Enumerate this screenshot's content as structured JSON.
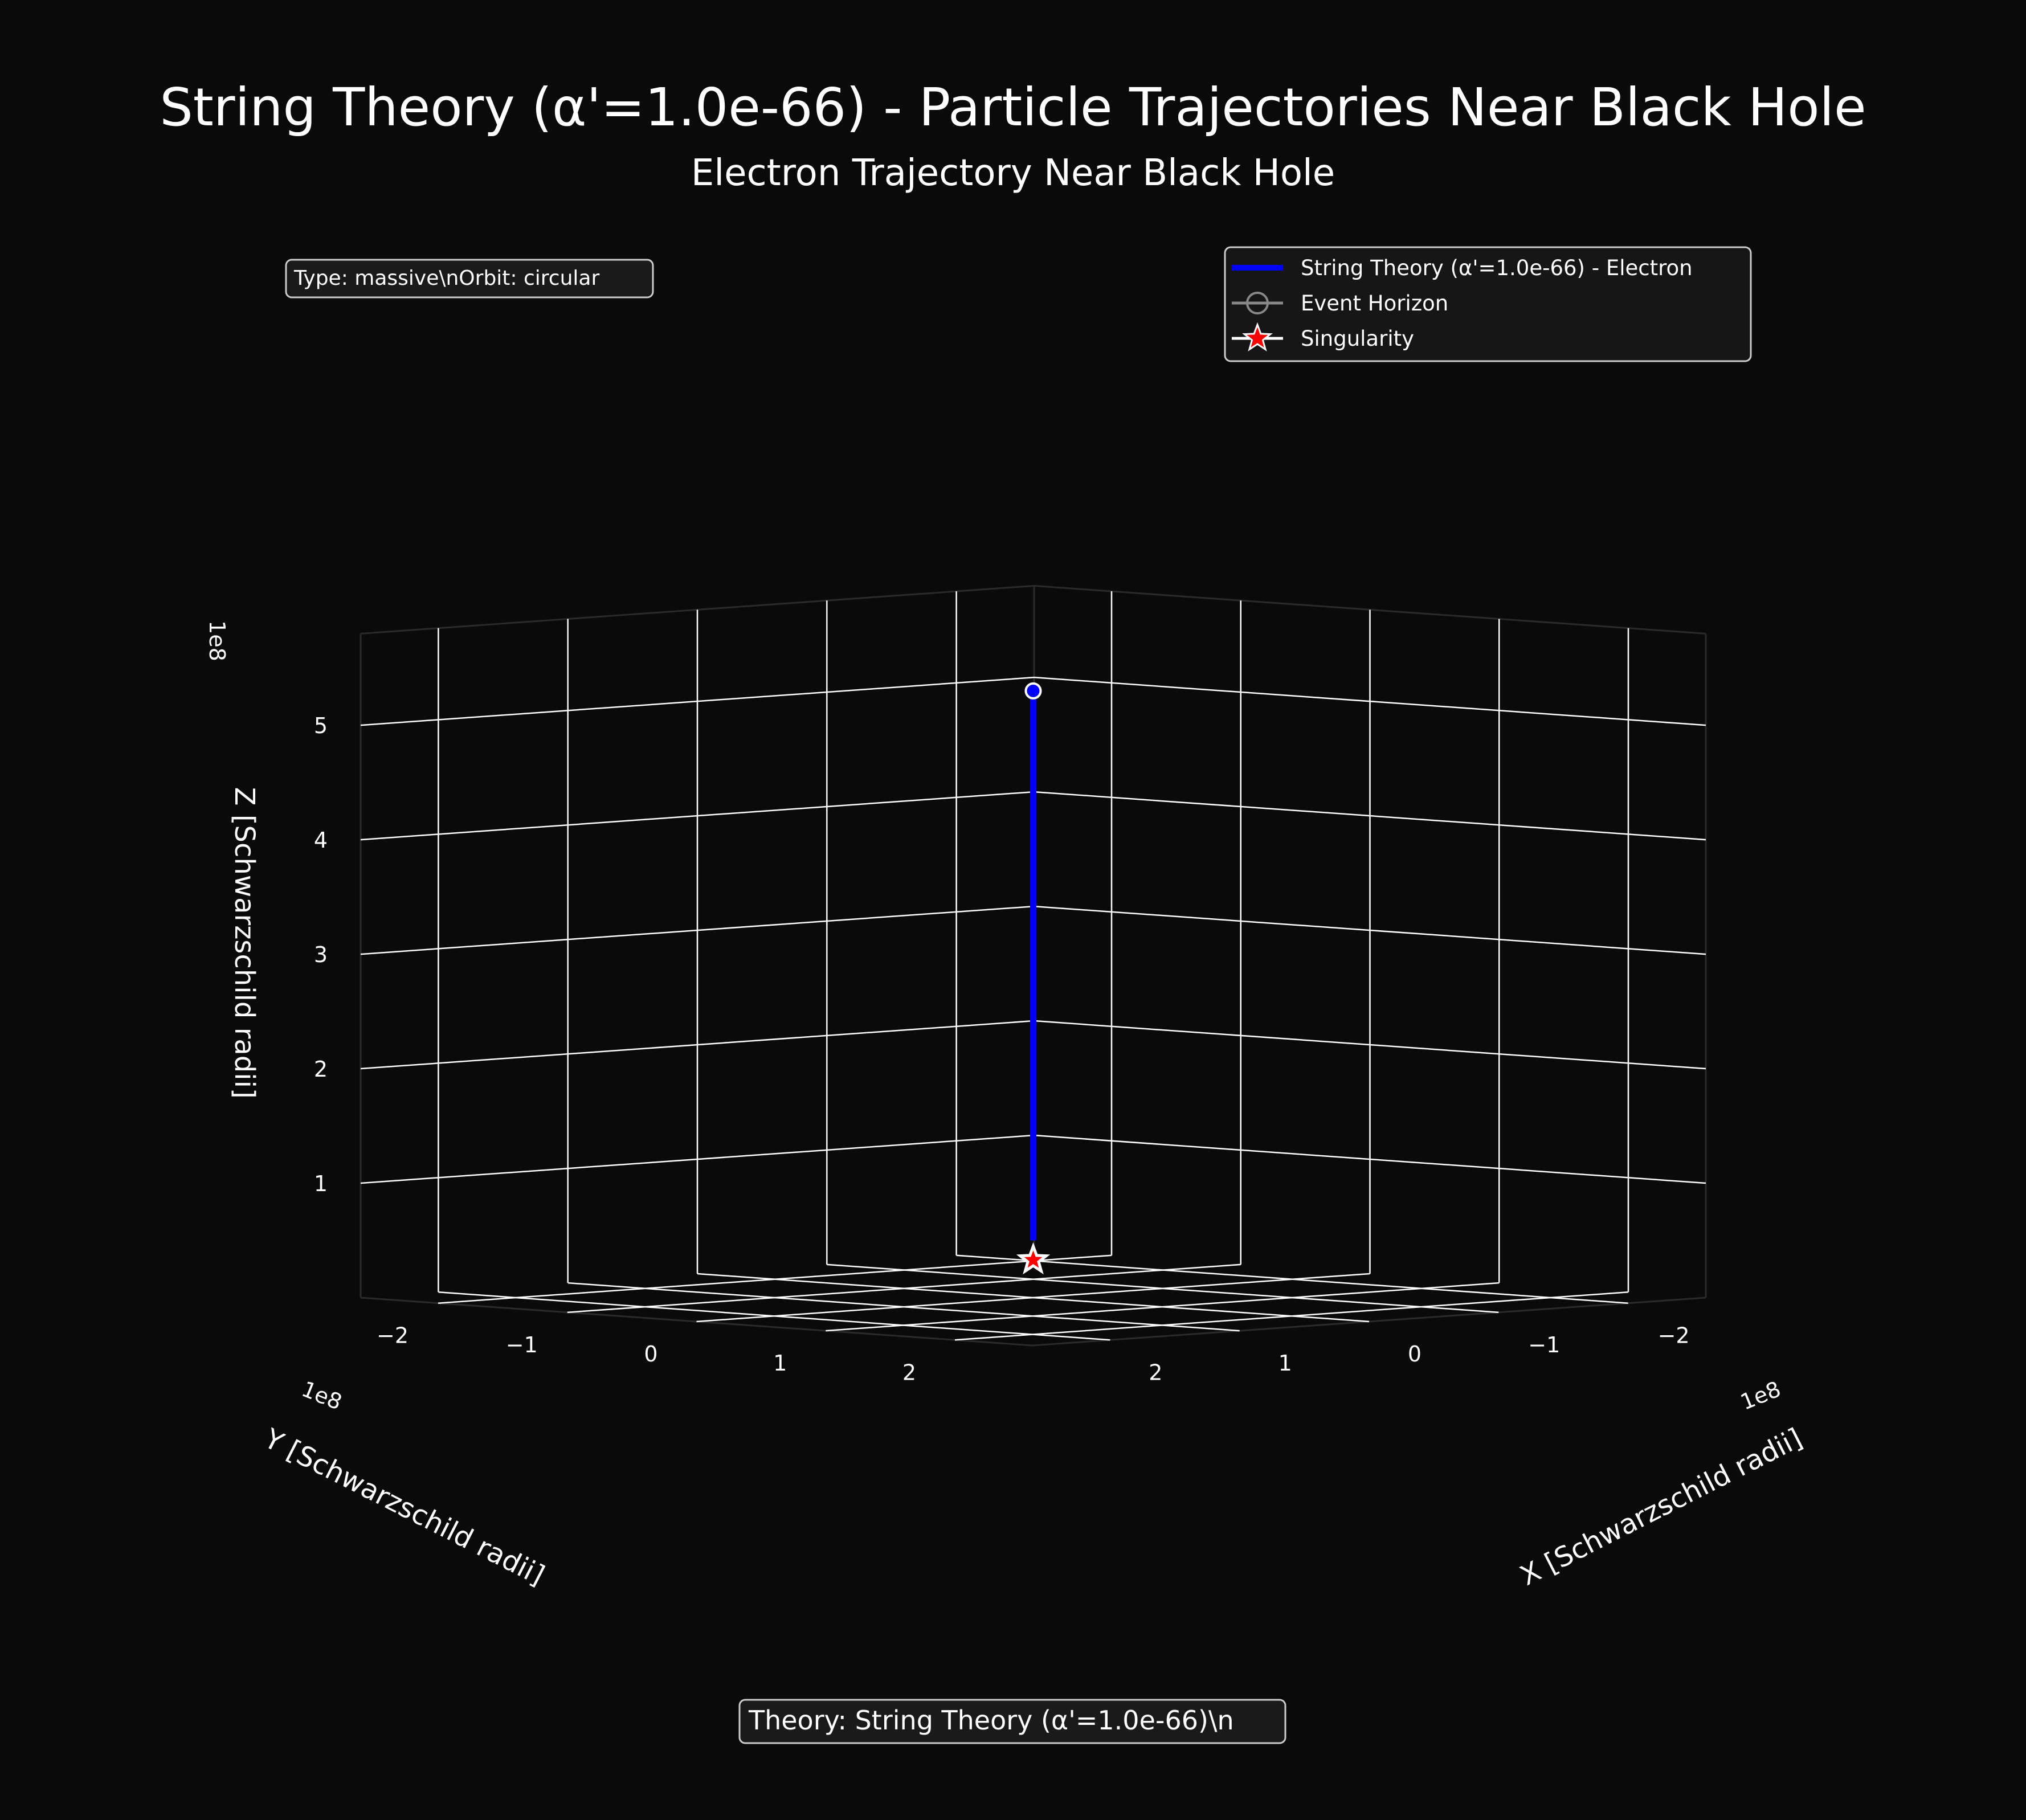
{
  "figure": {
    "suptitle": "String Theory (α'=1.0e-66) - Particle Trajectories Near Black Hole",
    "subtitle": "Electron Trajectory Near Black Hole",
    "info_box": "Type: massive\\nOrbit: circular",
    "theory_box": "Theory: String Theory (α'=1.0e-66)\\n",
    "background": "#0a0a0a"
  },
  "legend": {
    "position": "upper-right",
    "entries": [
      {
        "label": "String Theory (α'=1.0e-66) - Electron",
        "marker": "line",
        "color": "#0000ff"
      },
      {
        "label": "Event Horizon",
        "marker": "circle-outline",
        "color": "#888888"
      },
      {
        "label": "Singularity",
        "marker": "star",
        "color": "#ff0000"
      }
    ]
  },
  "chart_data": {
    "type": "line3d",
    "x": {
      "label": "X [Schwarzschild radii]",
      "ticks": [
        "−2",
        "−1",
        "0",
        "1",
        "2"
      ],
      "tick_values": [
        -2,
        -1,
        0,
        1,
        2
      ],
      "offset_text": "1e8"
    },
    "y": {
      "label": "Y [Schwarzschild radii]",
      "ticks": [
        "−2",
        "−1",
        "0",
        "1",
        "2"
      ],
      "tick_values": [
        -2,
        -1,
        0,
        1,
        2
      ],
      "offset_text": "1e8"
    },
    "z": {
      "label": "Z [Schwarzschild radii]",
      "ticks": [
        "1",
        "2",
        "3",
        "4",
        "5"
      ],
      "tick_values": [
        1,
        2,
        3,
        4,
        5
      ],
      "offset_text": "1e8"
    },
    "series": [
      {
        "name": "String Theory (α'=1.0e-66) - Electron",
        "color": "#0000ff",
        "x": [
          0,
          0
        ],
        "y": [
          0,
          0
        ],
        "z": [
          0.5,
          5.3
        ]
      }
    ],
    "singularity": {
      "x": 0,
      "y": 0,
      "z": 0,
      "color": "#ff0000"
    },
    "grid": true
  }
}
